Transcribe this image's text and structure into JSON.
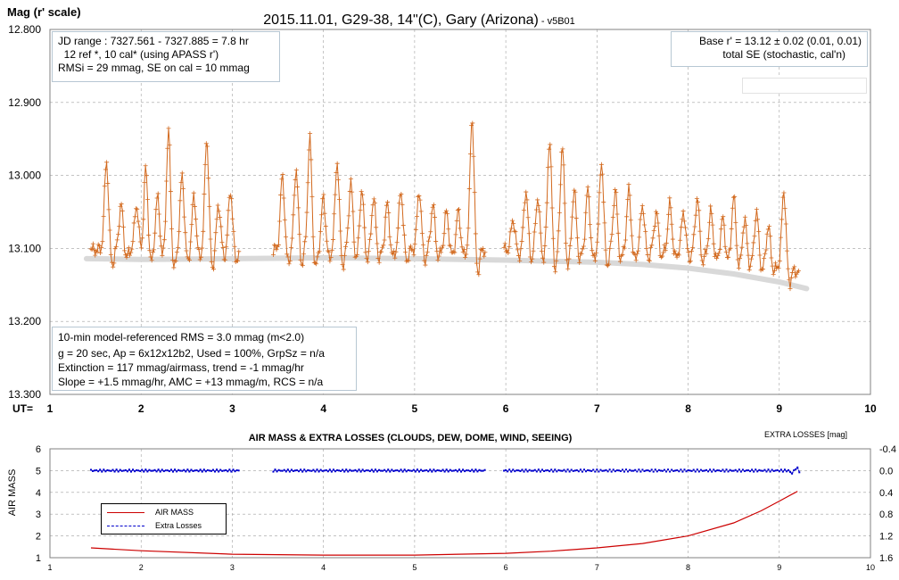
{
  "chart_data": [
    {
      "type": "scatter",
      "title": "2015.11.01, G29-38, 14\"(C), Gary (Arizona)",
      "title_suffix": " - v5B01",
      "ylabel": "Mag (r' scale)",
      "xlabel": "UT=",
      "xlim": [
        1,
        10
      ],
      "ylim": [
        12.8,
        13.3
      ],
      "y_inverted": true,
      "grid": true,
      "x_ticks": [
        "1",
        "2",
        "3",
        "4",
        "5",
        "6",
        "7",
        "8",
        "9",
        "10"
      ],
      "y_ticks": [
        "12.800",
        "12.900",
        "13.000",
        "13.100",
        "13.200",
        "13.300"
      ],
      "observation_color": "#d2691e",
      "trend_color": "#d9d9d9",
      "observation_segments": [
        [
          1.45,
          3.08
        ],
        [
          3.45,
          5.78
        ],
        [
          5.98,
          9.22
        ]
      ],
      "observation_peaks": [
        [
          1.62,
          12.98
        ],
        [
          1.78,
          13.04
        ],
        [
          1.95,
          13.04
        ],
        [
          2.05,
          12.99
        ],
        [
          2.18,
          13.03
        ],
        [
          2.3,
          12.94
        ],
        [
          2.45,
          13.0
        ],
        [
          2.58,
          13.03
        ],
        [
          2.72,
          12.95
        ],
        [
          2.85,
          13.04
        ],
        [
          2.98,
          13.02
        ],
        [
          3.55,
          13.0
        ],
        [
          3.7,
          12.99
        ],
        [
          3.85,
          12.95
        ],
        [
          4.0,
          13.03
        ],
        [
          4.15,
          12.98
        ],
        [
          4.3,
          13.01
        ],
        [
          4.42,
          13.02
        ],
        [
          4.55,
          13.03
        ],
        [
          4.7,
          13.04
        ],
        [
          4.85,
          13.02
        ],
        [
          5.05,
          13.02
        ],
        [
          5.2,
          13.04
        ],
        [
          5.35,
          13.05
        ],
        [
          5.48,
          13.05
        ],
        [
          5.63,
          12.92
        ],
        [
          6.08,
          13.06
        ],
        [
          6.22,
          13.02
        ],
        [
          6.35,
          13.03
        ],
        [
          6.48,
          12.95
        ],
        [
          6.62,
          12.96
        ],
        [
          6.75,
          13.02
        ],
        [
          6.9,
          13.02
        ],
        [
          7.05,
          12.98
        ],
        [
          7.2,
          13.02
        ],
        [
          7.35,
          13.02
        ],
        [
          7.5,
          13.04
        ],
        [
          7.65,
          13.05
        ],
        [
          7.8,
          13.04
        ],
        [
          7.95,
          13.05
        ],
        [
          8.1,
          13.03
        ],
        [
          8.25,
          13.05
        ],
        [
          8.38,
          13.06
        ],
        [
          8.5,
          13.03
        ],
        [
          8.62,
          13.06
        ],
        [
          8.75,
          13.05
        ],
        [
          8.88,
          13.07
        ],
        [
          9.05,
          13.02
        ]
      ],
      "trend": {
        "x": [
          1.4,
          2.0,
          3.0,
          4.0,
          5.0,
          6.0,
          7.0,
          7.5,
          8.0,
          8.5,
          9.0,
          9.3
        ],
        "y": [
          13.114,
          13.115,
          13.114,
          13.113,
          13.114,
          13.116,
          13.119,
          13.122,
          13.127,
          13.135,
          13.146,
          13.155
        ]
      },
      "info_box_top_left": [
        "JD range : 7327.561 - 7327.885 = 7.8 hr",
        "  12 ref *, 10 cal* (using APASS r')",
        "RMSi = 29 mmag, SE on cal = 10 mmag"
      ],
      "info_box_top_right": [
        "Base r' = 13.12 ± 0.02 (0.01, 0.01)",
        "total SE (stochastic, cal'n)"
      ],
      "info_box_bottom_left": [
        "10-min model-referenced RMS = 3.0 mmag (m<2.0)",
        "g = 20 sec, Ap = 6x12x12b2, Used = 100%, GrpSz = n/a",
        "Extinction = 117 mmag/airmass, trend = -1 mmag/hr",
        "Slope = +1.5 mmag/hr, AMC = +13 mmag/m, RCS = n/a"
      ]
    },
    {
      "type": "line",
      "title": "AIR MASS & EXTRA LOSSES (CLOUDS, DEW, DOME, WIND, SEEING)",
      "ylabel": "AIR MASS",
      "y2label": "EXTRA LOSSES [mag]",
      "xlim": [
        1,
        10
      ],
      "ylim": [
        1,
        6
      ],
      "y2lim": [
        1.6,
        -0.4
      ],
      "grid": true,
      "x_ticks": [
        "1",
        "2",
        "3",
        "4",
        "5",
        "6",
        "7",
        "8",
        "9",
        "10"
      ],
      "y_ticks": [
        "1",
        "2",
        "3",
        "4",
        "5",
        "6"
      ],
      "y2_ticks": [
        "1.6",
        "1.2",
        "0.8",
        "0.4",
        "0.0",
        "-0.4"
      ],
      "series": [
        {
          "name": "AIR MASS",
          "color": "#cc0000",
          "x": [
            1.45,
            2.0,
            3.0,
            4.0,
            5.0,
            6.0,
            6.5,
            7.0,
            7.5,
            8.0,
            8.5,
            8.8,
            9.0,
            9.2
          ],
          "y": [
            1.45,
            1.32,
            1.16,
            1.12,
            1.12,
            1.2,
            1.3,
            1.45,
            1.65,
            2.0,
            2.6,
            3.15,
            3.6,
            4.05
          ]
        },
        {
          "name": "Extra Losses",
          "color": "#0000cc",
          "segments": [
            [
              1.45,
              3.08
            ],
            [
              3.45,
              5.78
            ],
            [
              5.98,
              9.22
            ]
          ],
          "y": 0.0
        }
      ]
    }
  ]
}
